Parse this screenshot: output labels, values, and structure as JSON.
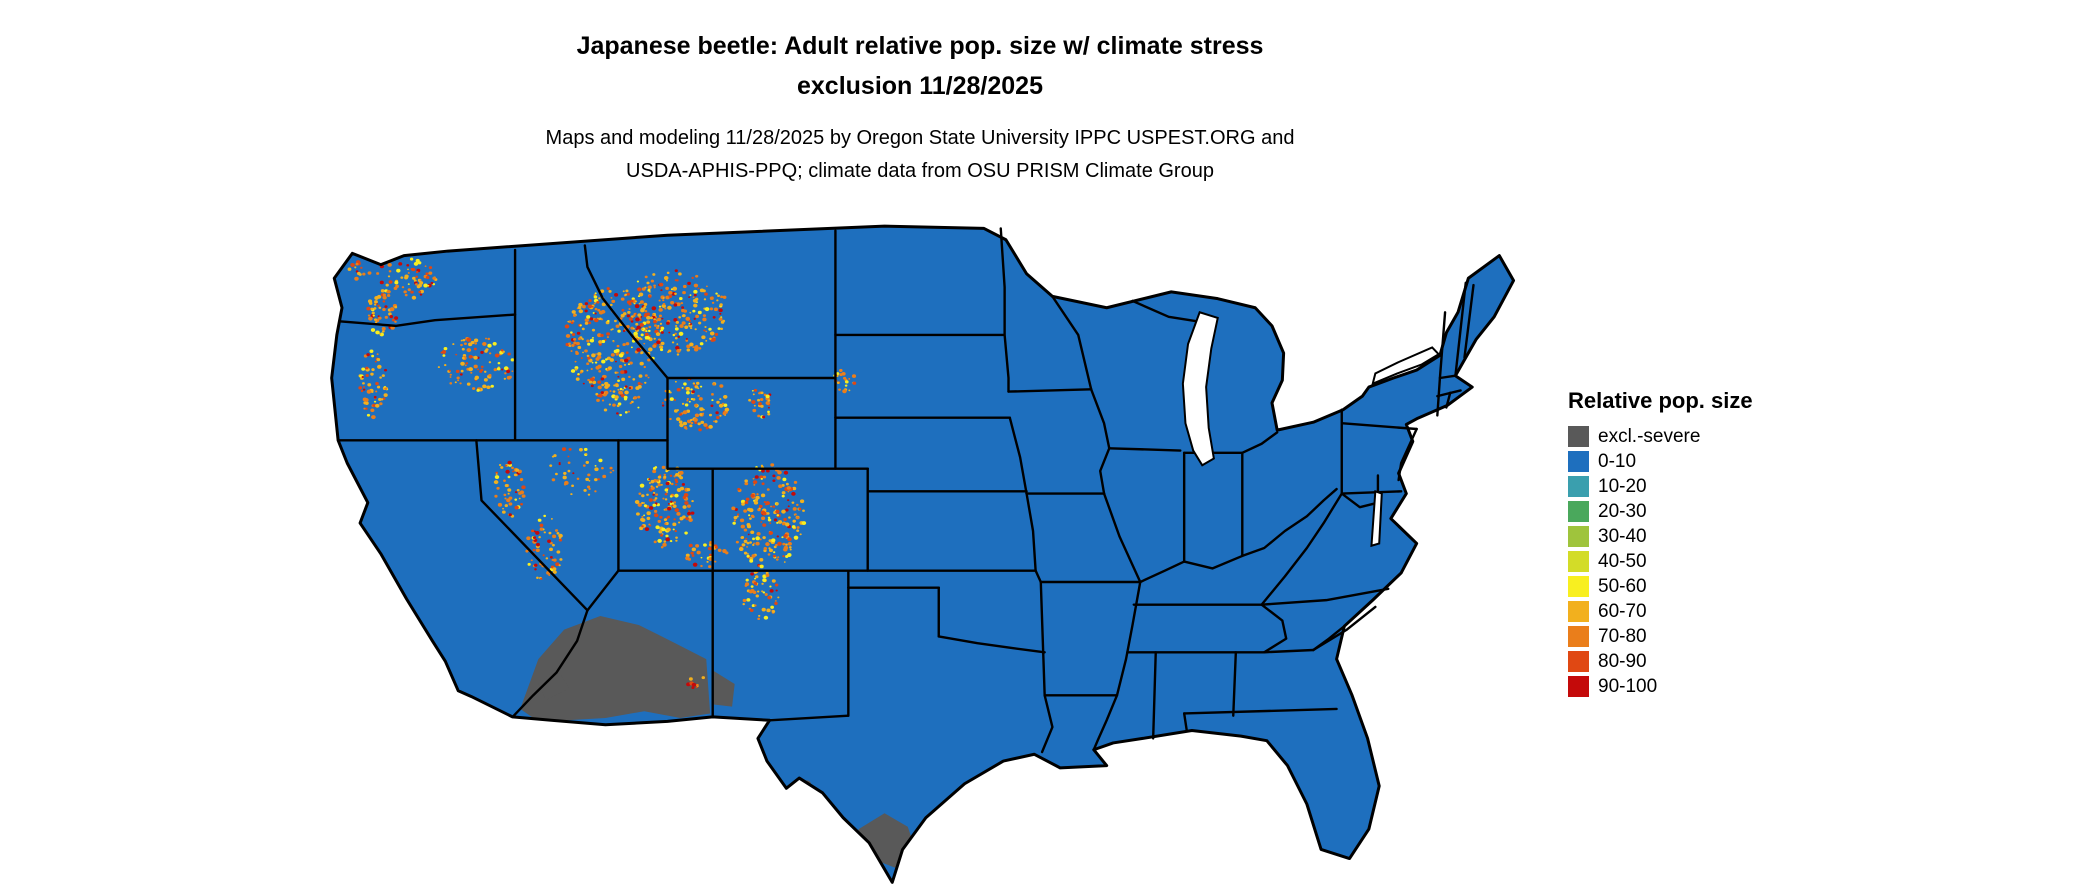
{
  "title": {
    "line1": "Japanese beetle: Adult relative pop. size w/ climate stress",
    "line2": "exclusion 11/28/2025"
  },
  "subtitle": {
    "line1": "Maps and modeling 11/28/2025 by Oregon State University IPPC USPEST.ORG and",
    "line2": "USDA-APHIS-PPQ; climate data from OSU PRISM Climate Group"
  },
  "legend": {
    "title": "Relative pop. size",
    "items": [
      {
        "label": "excl.-severe",
        "color": "#595959"
      },
      {
        "label": "0-10",
        "color": "#1e6fbe"
      },
      {
        "label": "10-20",
        "color": "#3a9fae"
      },
      {
        "label": "20-30",
        "color": "#4aa85c"
      },
      {
        "label": "30-40",
        "color": "#9fc43c"
      },
      {
        "label": "40-50",
        "color": "#d3dc28"
      },
      {
        "label": "50-60",
        "color": "#f8ef20"
      },
      {
        "label": "60-70",
        "color": "#f2b01e"
      },
      {
        "label": "70-80",
        "color": "#ea7e1b"
      },
      {
        "label": "80-90",
        "color": "#e04813"
      },
      {
        "label": "90-100",
        "color": "#c40a0a"
      }
    ]
  },
  "map": {
    "base_color": "#1e6fbe",
    "border_color": "#000000",
    "excluded_color": "#595959",
    "background": "#ffffff",
    "speckle": {
      "colors": [
        [
          "#f8ef20",
          0.14
        ],
        [
          "#f2b01e",
          0.34
        ],
        [
          "#ea7e1b",
          0.28
        ],
        [
          "#e04813",
          0.15
        ],
        [
          "#c40a0a",
          0.09
        ]
      ],
      "clusters": [
        [
          258,
          118,
          38,
          48,
          280
        ],
        [
          305,
          92,
          42,
          38,
          230
        ],
        [
          152,
          138,
          30,
          24,
          100
        ],
        [
          97,
          62,
          26,
          18,
          70
        ],
        [
          80,
          92,
          12,
          22,
          50
        ],
        [
          72,
          155,
          11,
          30,
          60
        ],
        [
          178,
          245,
          12,
          28,
          55
        ],
        [
          205,
          300,
          14,
          30,
          60
        ],
        [
          232,
          232,
          26,
          22,
          45
        ],
        [
          298,
          262,
          22,
          38,
          150
        ],
        [
          378,
          272,
          28,
          46,
          210
        ],
        [
          372,
          342,
          14,
          22,
          55
        ],
        [
          322,
          172,
          26,
          24,
          95
        ],
        [
          372,
          172,
          9,
          16,
          28
        ],
        [
          436,
          152,
          9,
          11,
          22
        ],
        [
          62,
          55,
          9,
          8,
          14
        ],
        [
          672,
          70,
          8,
          4,
          10
        ],
        [
          262,
          168,
          18,
          16,
          40
        ],
        [
          330,
          305,
          16,
          12,
          30
        ],
        [
          322,
          418,
          8,
          8,
          10
        ]
      ]
    }
  }
}
